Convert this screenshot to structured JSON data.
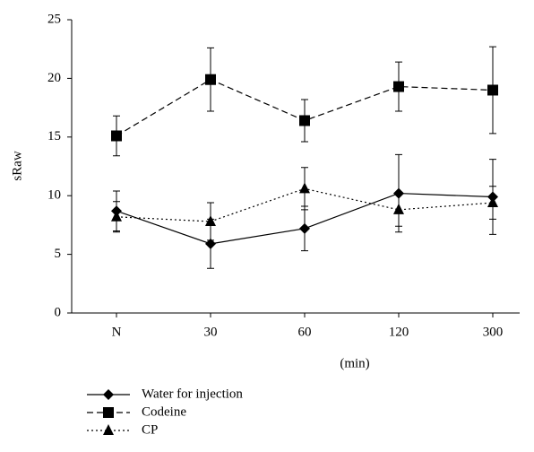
{
  "chart_data": {
    "type": "line",
    "y_label": "sRaw",
    "x_label": "(min)",
    "categories": [
      "N",
      "30",
      "60",
      "120",
      "300"
    ],
    "ylim": [
      0,
      25
    ],
    "yticks": [
      0,
      5,
      10,
      15,
      20,
      25
    ],
    "series": [
      {
        "name": "Water for injection",
        "color": "#000000",
        "dash": "solid",
        "marker": "diamond",
        "values": [
          8.7,
          5.9,
          7.2,
          10.2,
          9.9
        ],
        "errors": [
          1.7,
          2.1,
          1.9,
          3.3,
          3.2
        ]
      },
      {
        "name": "Codeine",
        "color": "#000000",
        "dash": "dashed",
        "marker": "square",
        "values": [
          15.1,
          19.9,
          16.4,
          19.3,
          19.0
        ],
        "errors": [
          1.7,
          2.7,
          1.8,
          2.1,
          3.7
        ]
      },
      {
        "name": "CP",
        "color": "#000000",
        "dash": "dotted",
        "marker": "triangle",
        "values": [
          8.2,
          7.8,
          10.6,
          8.8,
          9.4
        ],
        "errors": [
          1.3,
          1.6,
          1.8,
          1.4,
          1.4
        ]
      }
    ]
  }
}
